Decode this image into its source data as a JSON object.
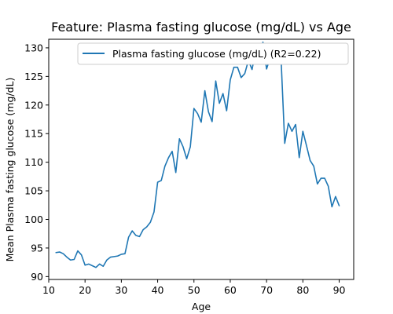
{
  "chart_data": {
    "type": "line",
    "title": "Feature: Plasma fasting glucose (mg/dL) vs Age",
    "xlabel": "Age",
    "ylabel": "Mean Plasma fasting glucose (mg/dL)",
    "xlim": [
      10,
      94
    ],
    "ylim": [
      89.5,
      131.5
    ],
    "xticks": [
      10,
      20,
      30,
      40,
      50,
      60,
      70,
      80,
      90
    ],
    "yticks": [
      90,
      95,
      100,
      105,
      110,
      115,
      120,
      125,
      130
    ],
    "grid": false,
    "legend": "top-right",
    "series": [
      {
        "name": "Plasma fasting glucose (mg/dL) (R2=0.22)",
        "color": "#1f77b4",
        "x": [
          12,
          13,
          14,
          15,
          16,
          17,
          18,
          19,
          20,
          21,
          22,
          23,
          24,
          25,
          26,
          27,
          28,
          29,
          30,
          31,
          32,
          33,
          34,
          35,
          36,
          37,
          38,
          39,
          40,
          41,
          42,
          43,
          44,
          45,
          46,
          47,
          48,
          49,
          50,
          51,
          52,
          53,
          54,
          55,
          56,
          57,
          58,
          59,
          60,
          61,
          62,
          63,
          64,
          65,
          66,
          67,
          68,
          69,
          70,
          71,
          72,
          73,
          74,
          75,
          76,
          77,
          78,
          79,
          80,
          81,
          82,
          83,
          84,
          85,
          86,
          87,
          88,
          89,
          90
        ],
        "y": [
          94.2,
          94.3,
          94.0,
          93.4,
          92.9,
          93.0,
          94.5,
          93.8,
          92.0,
          92.2,
          91.9,
          91.6,
          92.2,
          91.8,
          92.9,
          93.4,
          93.5,
          93.6,
          93.9,
          94.0,
          96.9,
          98.0,
          97.2,
          97.0,
          98.2,
          98.7,
          99.5,
          101.3,
          106.5,
          106.8,
          109.3,
          110.8,
          111.9,
          108.2,
          114.1,
          112.7,
          110.6,
          112.7,
          119.4,
          118.5,
          117.0,
          122.5,
          118.8,
          117.1,
          124.2,
          120.3,
          122.0,
          119.0,
          124.4,
          126.6,
          126.6,
          124.8,
          125.5,
          127.8,
          126.2,
          129.5,
          128.2,
          131.0,
          126.3,
          128.3,
          129.5,
          128.9,
          128.0,
          113.3,
          116.8,
          115.4,
          116.6,
          110.8,
          115.4,
          112.9,
          110.3,
          109.3,
          106.2,
          107.2,
          107.2,
          105.8,
          102.2,
          104.0,
          102.4
        ]
      }
    ]
  }
}
